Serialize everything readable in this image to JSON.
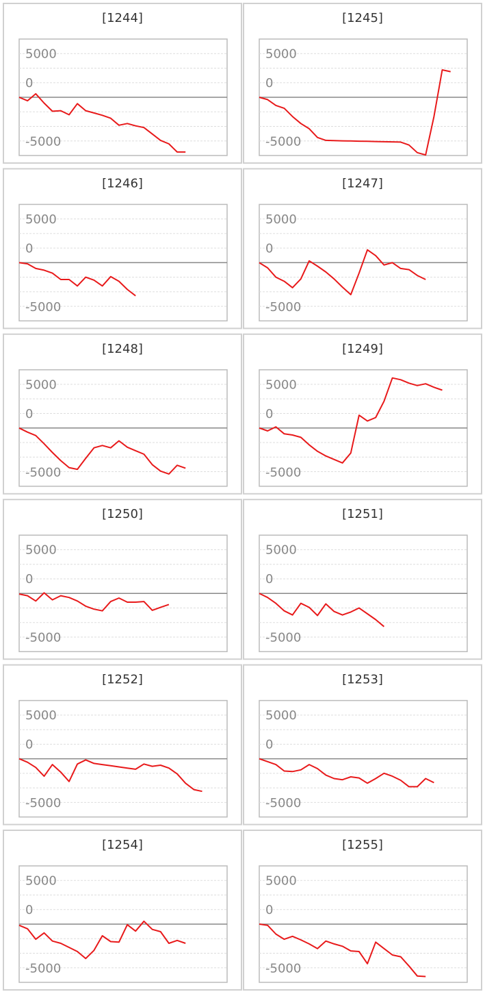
{
  "chart_data": [
    {
      "type": "line",
      "title": "[1244]",
      "color": "#e8191a",
      "ylim": [
        -10000,
        10000
      ],
      "yticks": [
        -5000,
        0,
        5000
      ],
      "values": [
        0,
        -600,
        600,
        -1000,
        -2400,
        -2300,
        -3000,
        -1100,
        -2300,
        -2700,
        -3100,
        -3600,
        -4800,
        -4500,
        -4900,
        -5200,
        -6300,
        -7400,
        -8000,
        -9400,
        -9400
      ]
    },
    {
      "type": "line",
      "title": "[1245]",
      "color": "#e8191a",
      "ylim": [
        -10000,
        10000
      ],
      "yticks": [
        -5000,
        0,
        5000
      ],
      "values": [
        0,
        -400,
        -1400,
        -1900,
        -3300,
        -4500,
        -5400,
        -6900,
        -7400,
        -7450,
        -7480,
        -7510,
        -7540,
        -7570,
        -7600,
        -7630,
        -7660,
        -7700,
        -8200,
        -9500,
        -9900,
        -3300,
        4700,
        4400
      ]
    },
    {
      "type": "line",
      "title": "[1246]",
      "color": "#e8191a",
      "ylim": [
        -10000,
        10000
      ],
      "yticks": [
        -5000,
        0,
        5000
      ],
      "values": [
        0,
        -200,
        -1000,
        -1300,
        -1800,
        -2900,
        -2900,
        -4000,
        -2500,
        -3000,
        -4000,
        -2400,
        -3200,
        -4600,
        -5700
      ]
    },
    {
      "type": "line",
      "title": "[1247]",
      "color": "#e8191a",
      "ylim": [
        -10000,
        10000
      ],
      "yticks": [
        -5000,
        0,
        5000
      ],
      "values": [
        0,
        -900,
        -2500,
        -3200,
        -4300,
        -2800,
        300,
        -600,
        -1600,
        -2800,
        -4200,
        -5500,
        -1800,
        2200,
        1200,
        -400,
        0,
        -1000,
        -1200,
        -2200,
        -2900
      ]
    },
    {
      "type": "line",
      "title": "[1248]",
      "color": "#e8191a",
      "ylim": [
        -10000,
        10000
      ],
      "yticks": [
        -5000,
        0,
        5000
      ],
      "values": [
        0,
        -700,
        -1300,
        -2700,
        -4200,
        -5600,
        -6800,
        -7100,
        -5200,
        -3400,
        -3000,
        -3400,
        -2200,
        -3300,
        -3900,
        -4500,
        -6300,
        -7400,
        -7900,
        -6400,
        -6900
      ]
    },
    {
      "type": "line",
      "title": "[1249]",
      "color": "#e8191a",
      "ylim": [
        -10000,
        10000
      ],
      "yticks": [
        -5000,
        0,
        5000
      ],
      "values": [
        0,
        -500,
        200,
        -1000,
        -1200,
        -1600,
        -2900,
        -4000,
        -4800,
        -5400,
        -6000,
        -4300,
        2200,
        1200,
        1800,
        4600,
        8600,
        8300,
        7700,
        7300,
        7600,
        7000,
        6500
      ]
    },
    {
      "type": "line",
      "title": "[1250]",
      "color": "#e8191a",
      "ylim": [
        -10000,
        10000
      ],
      "yticks": [
        -5000,
        0,
        5000
      ],
      "values": [
        -100,
        -400,
        -1300,
        100,
        -1100,
        -400,
        -700,
        -1300,
        -2200,
        -2700,
        -3000,
        -1400,
        -800,
        -1500,
        -1500,
        -1400,
        -2900,
        -2400,
        -1900
      ]
    },
    {
      "type": "line",
      "title": "[1251]",
      "color": "#e8191a",
      "ylim": [
        -10000,
        10000
      ],
      "yticks": [
        -5000,
        0,
        5000
      ],
      "values": [
        0,
        -700,
        -1700,
        -3000,
        -3700,
        -1700,
        -2400,
        -3800,
        -1800,
        -3100,
        -3700,
        -3200,
        -2500,
        -3500,
        -4500,
        -5700
      ]
    },
    {
      "type": "line",
      "title": "[1252]",
      "color": "#e8191a",
      "ylim": [
        -10000,
        10000
      ],
      "yticks": [
        -5000,
        0,
        5000
      ],
      "values": [
        0,
        -600,
        -1500,
        -3000,
        -1000,
        -2300,
        -3900,
        -900,
        -200,
        -800,
        -1000,
        -1200,
        -1400,
        -1600,
        -1800,
        -900,
        -1300,
        -1100,
        -1600,
        -2600,
        -4200,
        -5300,
        -5600
      ]
    },
    {
      "type": "line",
      "title": "[1253]",
      "color": "#e8191a",
      "ylim": [
        -10000,
        10000
      ],
      "yticks": [
        -5000,
        0,
        5000
      ],
      "values": [
        0,
        -500,
        -1000,
        -2100,
        -2200,
        -1900,
        -1000,
        -1700,
        -2800,
        -3400,
        -3600,
        -3100,
        -3300,
        -4200,
        -3400,
        -2500,
        -3000,
        -3700,
        -4800,
        -4800,
        -3400,
        -4100
      ]
    },
    {
      "type": "line",
      "title": "[1254]",
      "color": "#e8191a",
      "ylim": [
        -10000,
        10000
      ],
      "yticks": [
        -5000,
        0,
        5000
      ],
      "values": [
        -200,
        -800,
        -2600,
        -1500,
        -2900,
        -3300,
        -4000,
        -4700,
        -5900,
        -4500,
        -2000,
        -3000,
        -3100,
        -100,
        -1200,
        500,
        -900,
        -1300,
        -3300,
        -2800,
        -3300
      ]
    },
    {
      "type": "line",
      "title": "[1255]",
      "color": "#e8191a",
      "ylim": [
        -10000,
        10000
      ],
      "yticks": [
        -5000,
        0,
        5000
      ],
      "values": [
        0,
        -200,
        -1700,
        -2600,
        -2100,
        -2700,
        -3400,
        -4200,
        -2900,
        -3400,
        -3800,
        -4600,
        -4700,
        -6800,
        -3100,
        -4200,
        -5300,
        -5600,
        -7200,
        -8900,
        -9000
      ]
    }
  ]
}
